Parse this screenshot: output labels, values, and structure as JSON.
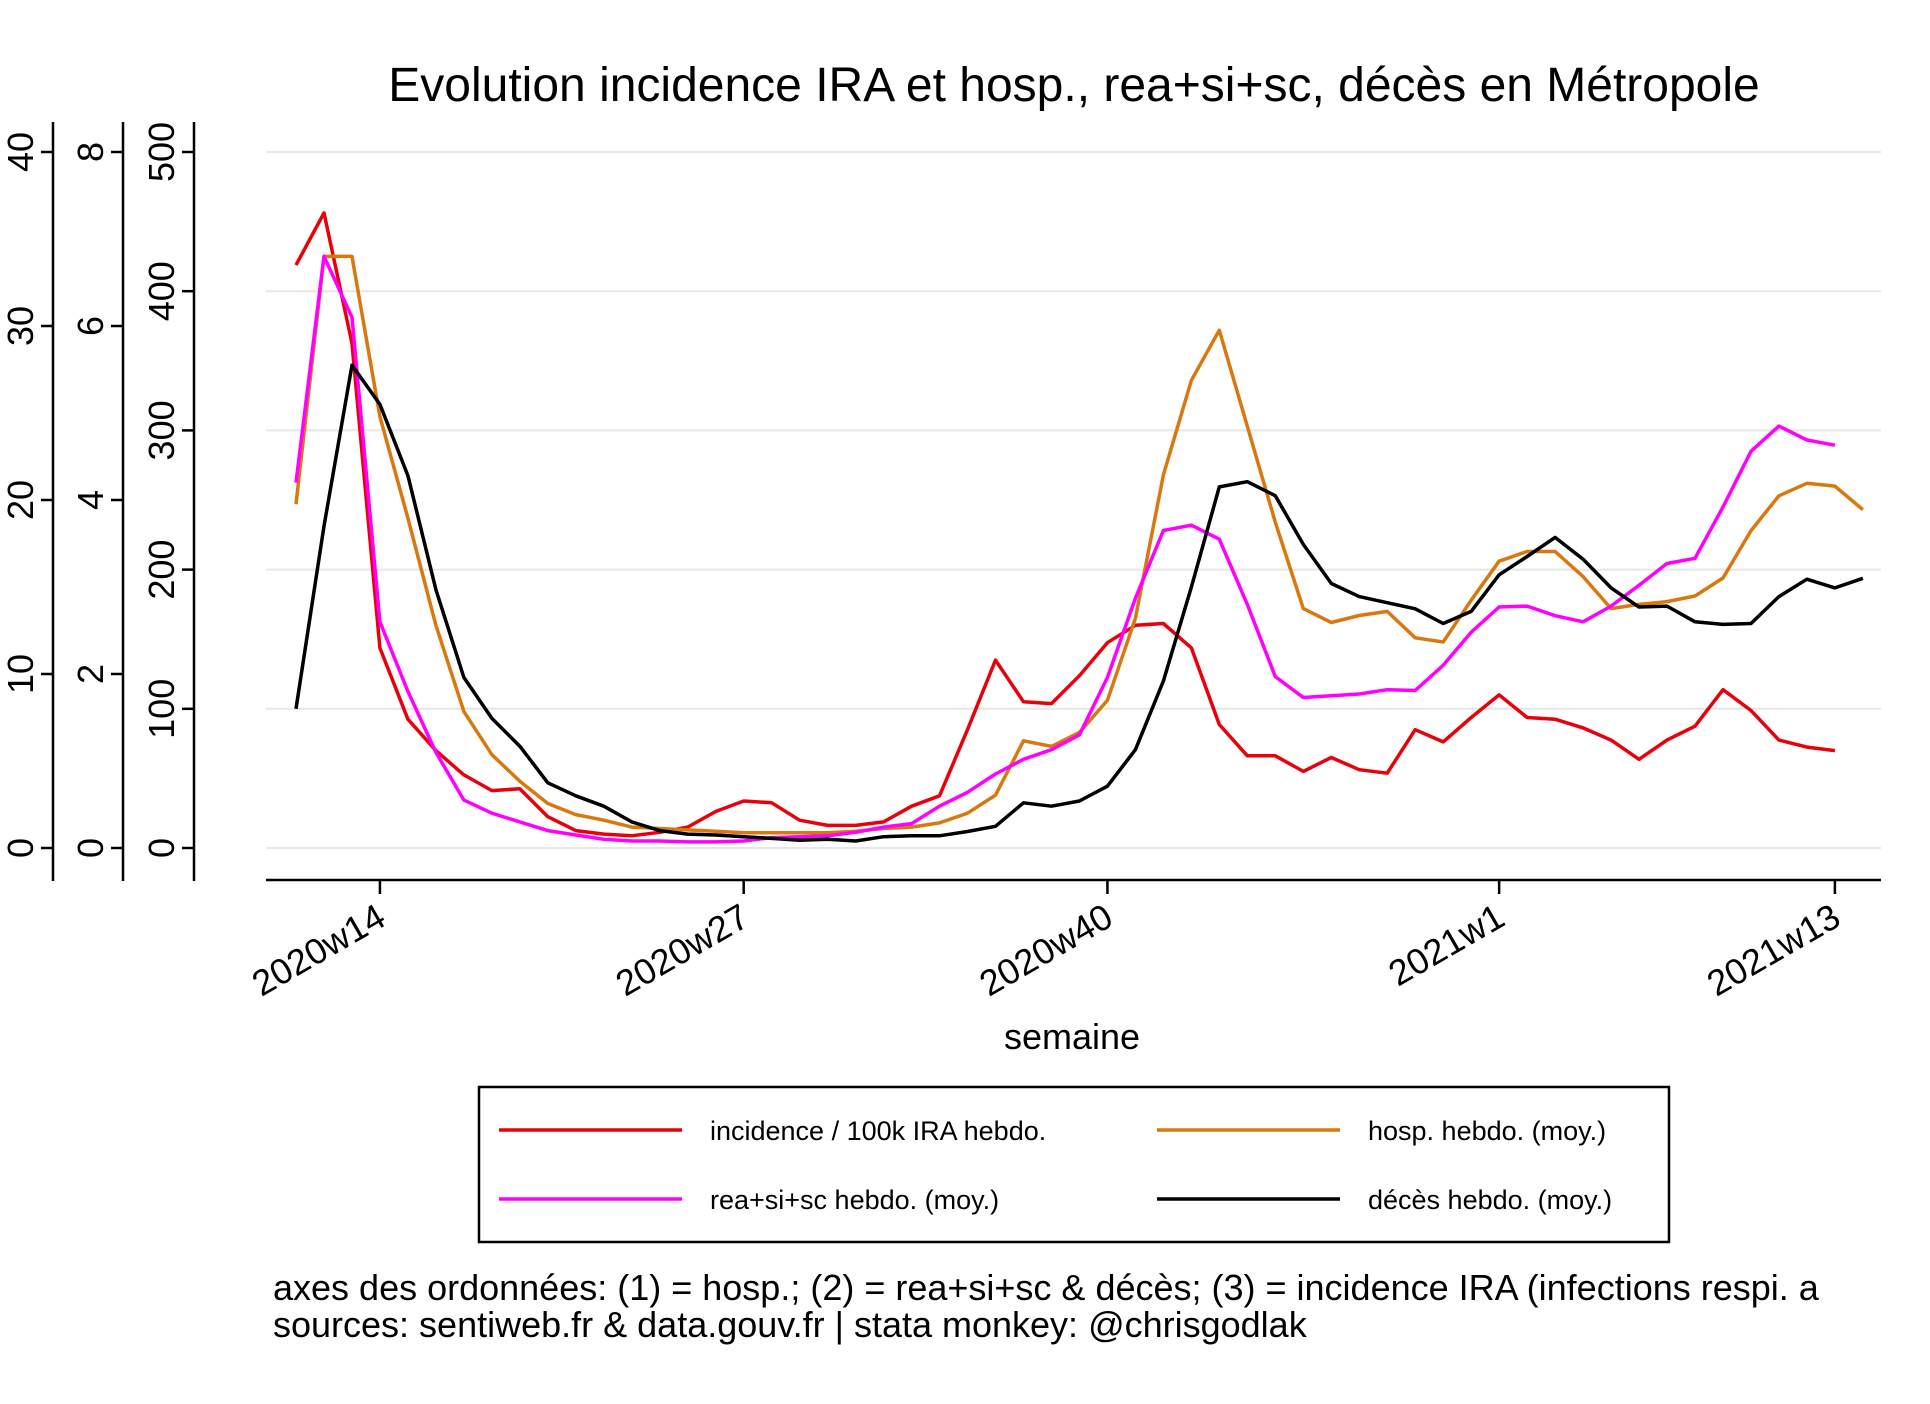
{
  "chart_data": {
    "type": "line",
    "title": "Evolution incidence IRA et hosp., rea+si+sc, décès en Métropole",
    "xlabel": "semaine",
    "x_tick_labels": [
      "2020w14",
      "2020w27",
      "2020w40",
      "2021w1",
      "2021w13"
    ],
    "y_axes": [
      {
        "name": "hosp.",
        "ticks": [
          "0",
          "100",
          "200",
          "300",
          "400",
          "500"
        ],
        "range": [
          0,
          500
        ]
      },
      {
        "name": "rea+si+sc & décès",
        "ticks": [
          "0",
          "2",
          "4",
          "6",
          "8"
        ],
        "range": [
          0,
          8
        ]
      },
      {
        "name": "incidence IRA",
        "ticks": [
          "0",
          "10",
          "20",
          "30",
          "40"
        ],
        "range": [
          0,
          40
        ]
      }
    ],
    "grid": true,
    "legend_position": "bottom",
    "weeks": [
      "2020w11",
      "2020w12",
      "2020w13",
      "2020w14",
      "2020w15",
      "2020w16",
      "2020w17",
      "2020w18",
      "2020w19",
      "2020w20",
      "2020w21",
      "2020w22",
      "2020w23",
      "2020w24",
      "2020w25",
      "2020w26",
      "2020w27",
      "2020w28",
      "2020w29",
      "2020w30",
      "2020w31",
      "2020w32",
      "2020w33",
      "2020w34",
      "2020w35",
      "2020w36",
      "2020w37",
      "2020w38",
      "2020w39",
      "2020w40",
      "2020w41",
      "2020w42",
      "2020w43",
      "2020w44",
      "2020w45",
      "2020w46",
      "2020w47",
      "2020w48",
      "2020w49",
      "2020w50",
      "2020w51",
      "2020w52",
      "2020w53",
      "2021w1",
      "2021w2",
      "2021w3",
      "2021w4",
      "2021w5",
      "2021w6",
      "2021w7",
      "2021w8",
      "2021w9",
      "2021w10",
      "2021w11",
      "2021w12",
      "2021w13",
      "2021w14",
      "2021w15",
      "2021w16"
    ],
    "series": [
      {
        "name": "incidence / 100k IRA hebdo.",
        "color": "#e8000b",
        "axis": 2,
        "values": [
          33.5,
          36.5,
          29,
          11.5,
          7.4,
          5.6,
          4.2,
          3.3,
          3.4,
          1.8,
          1,
          0.8,
          0.7,
          0.9,
          1.2,
          2.1,
          2.7,
          2.6,
          1.6,
          1.3,
          1.3,
          1.5,
          2.4,
          3,
          6.8,
          10.8,
          8.4,
          8.3,
          9.9,
          11.8,
          12.8,
          12.9,
          11.5,
          7.1,
          5.3,
          5.3,
          4.4,
          5.2,
          4.5,
          4.3,
          6.8,
          6.1,
          7.5,
          8.8,
          7.5,
          7.4,
          6.9,
          6.2,
          5.1,
          6.2,
          7,
          9.1,
          7.9,
          6.2,
          5.8,
          5.6
        ]
      },
      {
        "name": "hosp. hebdo. (moy.)",
        "color": "#d9780f",
        "axis": 0,
        "values": [
          247,
          425,
          425,
          310,
          237,
          160,
          98,
          67,
          48,
          32,
          24,
          20,
          15,
          14,
          13,
          12,
          11,
          11,
          11,
          11,
          12,
          14,
          15,
          18,
          25,
          38,
          77,
          73,
          83,
          106,
          165,
          268,
          336,
          372,
          303,
          234,
          172,
          162,
          167,
          170,
          151,
          148,
          178,
          206,
          213,
          213,
          195,
          172,
          175,
          177,
          181,
          194,
          228,
          253,
          262,
          260,
          243
        ]
      },
      {
        "name": "rea+si+sc hebdo. (moy.)",
        "color": "#ff00ff",
        "axis": 1,
        "values": [
          4.2,
          6.8,
          6.1,
          2.6,
          1.8,
          1.1,
          0.55,
          0.4,
          0.3,
          0.2,
          0.15,
          0.1,
          0.08,
          0.08,
          0.07,
          0.07,
          0.08,
          0.12,
          0.13,
          0.14,
          0.18,
          0.24,
          0.28,
          0.48,
          0.64,
          0.85,
          1.02,
          1.13,
          1.3,
          1.96,
          2.87,
          3.65,
          3.71,
          3.55,
          2.8,
          1.97,
          1.73,
          1.75,
          1.77,
          1.82,
          1.81,
          2.1,
          2.48,
          2.77,
          2.78,
          2.67,
          2.6,
          2.78,
          3.02,
          3.27,
          3.33,
          3.92,
          4.56,
          4.85,
          4.69,
          4.63
        ]
      },
      {
        "name": "décès hebdo. (moy.)",
        "color": "#000000",
        "axis": 1,
        "values": [
          1.6,
          3.7,
          5.55,
          5.1,
          4.28,
          2.97,
          1.96,
          1.49,
          1.17,
          0.75,
          0.6,
          0.48,
          0.3,
          0.2,
          0.16,
          0.15,
          0.13,
          0.11,
          0.09,
          0.1,
          0.08,
          0.13,
          0.14,
          0.14,
          0.19,
          0.25,
          0.52,
          0.48,
          0.54,
          0.71,
          1.13,
          1.92,
          3.0,
          4.15,
          4.21,
          4.05,
          3.49,
          3.04,
          2.89,
          2.82,
          2.75,
          2.58,
          2.72,
          3.14,
          3.35,
          3.57,
          3.32,
          2.99,
          2.77,
          2.78,
          2.6,
          2.57,
          2.58,
          2.89,
          3.09,
          2.99,
          3.1
        ]
      }
    ],
    "notes": [
      "axes des ordonnées: (1) = hosp.; (2) = rea+si+sc & décès; (3) = incidence IRA (infections respi. a",
      "sources: sentiweb.fr & data.gouv.fr | stata monkey: @chrisgodlak"
    ]
  }
}
